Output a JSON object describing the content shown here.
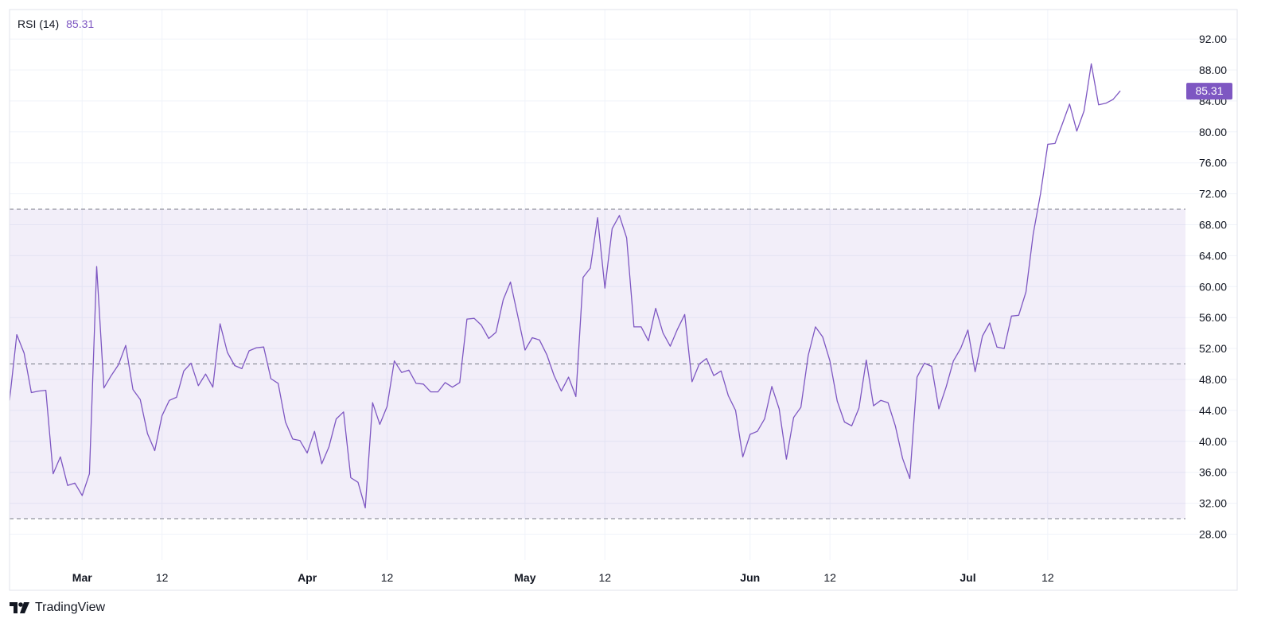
{
  "legend": {
    "indicator": "RSI (14)",
    "value": "85.31"
  },
  "branding": {
    "name": "TradingView"
  },
  "colors": {
    "line": "#7E57C2",
    "band": "#7E57C2",
    "grid": "#F0F3FA",
    "text": "#131722",
    "dash": "#787B86"
  },
  "chart_data": {
    "type": "line",
    "ylim": [
      24,
      94
    ],
    "yticks": [
      "92.00",
      "88.00",
      "84.00",
      "80.00",
      "76.00",
      "72.00",
      "68.00",
      "64.00",
      "60.00",
      "56.00",
      "52.00",
      "48.00",
      "44.00",
      "40.00",
      "36.00",
      "32.00",
      "28.00"
    ],
    "xticks": [
      {
        "label": "Mar",
        "day": 10,
        "bold": true
      },
      {
        "label": "12",
        "day": 21,
        "bold": false
      },
      {
        "label": "Apr",
        "day": 41,
        "bold": true
      },
      {
        "label": "12",
        "day": 52,
        "bold": false
      },
      {
        "label": "May",
        "day": 71,
        "bold": true
      },
      {
        "label": "12",
        "day": 82,
        "bold": false
      },
      {
        "label": "Jun",
        "day": 102,
        "bold": true
      },
      {
        "label": "12",
        "day": 113,
        "bold": false
      },
      {
        "label": "Jul",
        "day": 132,
        "bold": true
      },
      {
        "label": "12",
        "day": 143,
        "bold": false
      }
    ],
    "upper_band": 70,
    "middle_band": 50,
    "lower_band": 30,
    "last_value": 85.31,
    "last_value_label": "85.31",
    "series": [
      {
        "values": [
          45.3,
          53.8,
          51.4,
          46.3,
          46.5,
          46.6,
          35.8,
          38.0,
          34.3,
          34.6,
          33.0,
          35.8,
          62.6,
          46.9,
          48.5,
          49.9,
          52.4,
          46.7,
          45.4,
          41.0,
          38.8,
          43.3,
          45.3,
          45.7,
          49.1,
          50.1,
          47.2,
          48.7,
          47.0,
          55.2,
          51.5,
          49.8,
          49.4,
          51.7,
          52.1,
          52.2,
          48.1,
          47.5,
          42.5,
          40.3,
          40.1,
          38.5,
          41.3,
          37.1,
          39.3,
          42.9,
          43.8,
          35.3,
          34.7,
          31.4,
          45.0,
          42.2,
          44.5,
          50.4,
          48.9,
          49.2,
          47.5,
          47.4,
          46.4,
          46.4,
          47.6,
          47.0,
          47.6,
          55.8,
          55.9,
          55.0,
          53.3,
          54.1,
          58.3,
          60.6,
          56.2,
          51.8,
          53.4,
          53.1,
          51.2,
          48.5,
          46.5,
          48.3,
          45.8,
          61.2,
          62.4,
          68.9,
          59.8,
          67.5,
          69.2,
          66.3,
          54.8,
          54.8,
          53.0,
          57.2,
          54.0,
          52.3,
          54.5,
          56.4,
          47.7,
          50.0,
          50.7,
          48.5,
          49.1,
          45.9,
          44.0,
          38.0,
          40.9,
          41.3,
          42.9,
          47.1,
          44.2,
          37.7,
          43.1,
          44.4,
          51.1,
          54.8,
          53.5,
          50.4,
          45.2,
          42.5,
          42.0,
          44.3,
          50.5,
          44.6,
          45.3,
          45.0,
          42.0,
          37.8,
          35.2,
          48.3,
          50.1,
          49.7,
          44.2,
          47.0,
          50.4,
          52.0,
          54.4,
          49.0,
          53.6,
          55.3,
          52.2,
          52.0,
          56.2,
          56.3,
          59.3,
          66.8,
          72.0,
          78.4,
          78.5,
          81.0,
          83.6,
          80.1,
          82.7,
          88.8,
          83.5,
          83.7,
          84.2,
          85.31
        ]
      }
    ]
  }
}
